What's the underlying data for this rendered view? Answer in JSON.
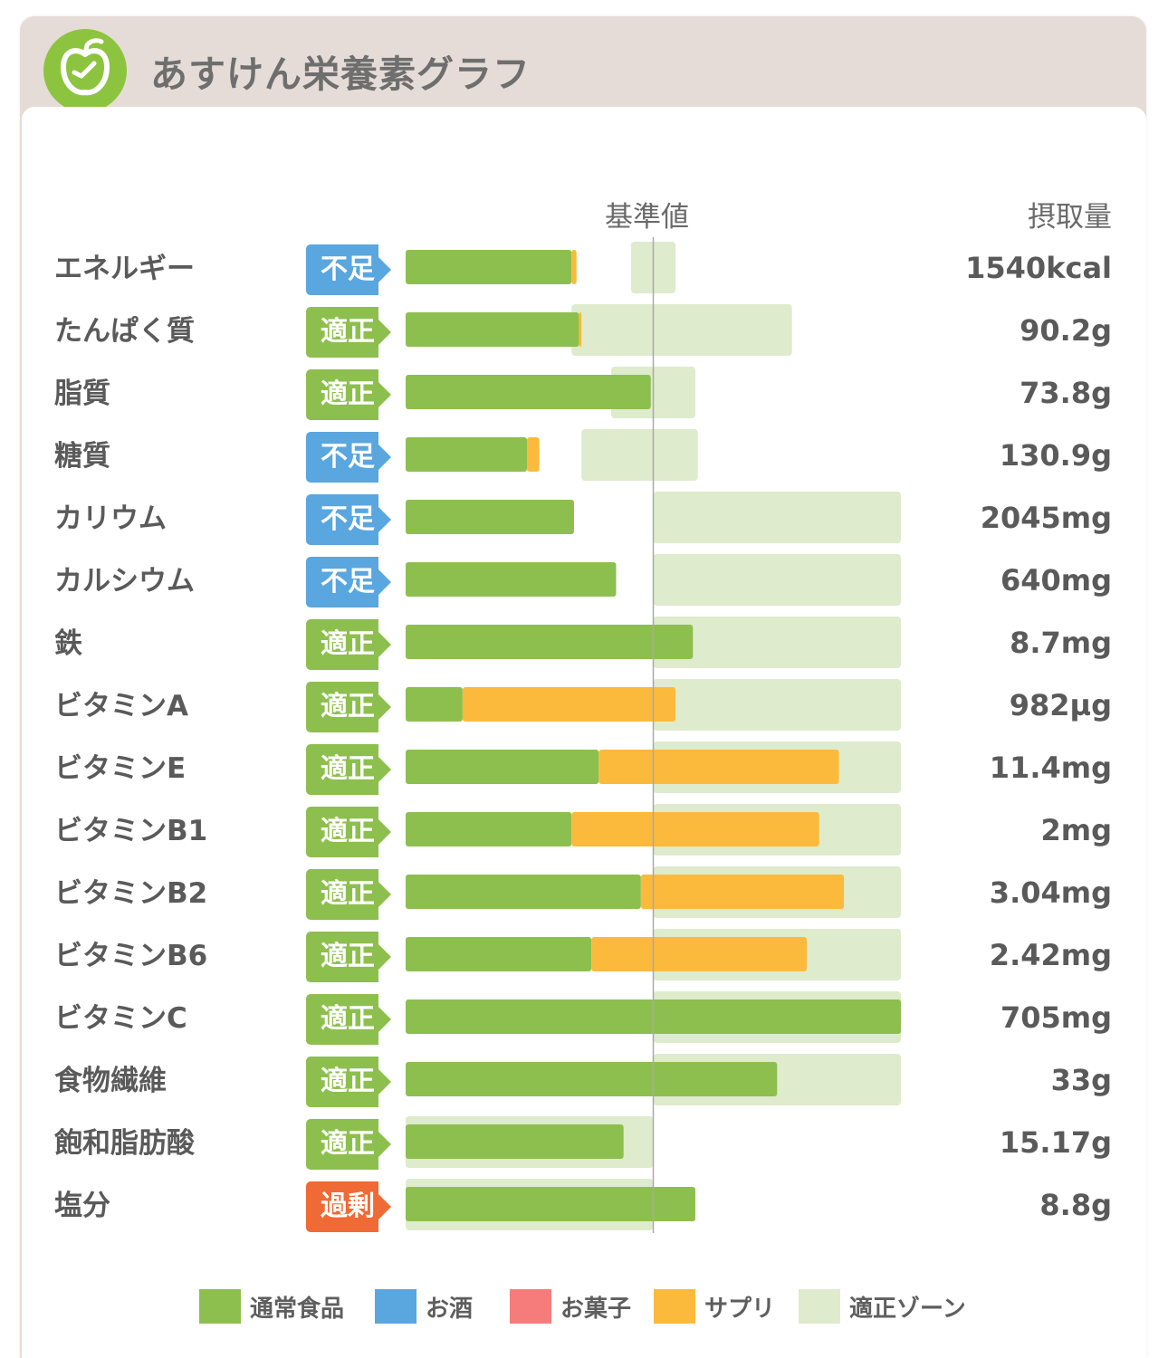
{
  "header": {
    "title": "あすけん栄養素グラフ",
    "logo_icon": "apple-clock-icon"
  },
  "columns": {
    "base_label": "基準値",
    "intake_label": "摂取量"
  },
  "status_colors": {
    "不足": "#5aa6df",
    "適正": "#8dbf4e",
    "過剰": "#f06a35"
  },
  "colors": {
    "food": "#8dbf4e",
    "alcohol": "#5aa6df",
    "snack": "#f67c7c",
    "supplement": "#fbba3c",
    "zone": "#deebcc"
  },
  "chart_data": {
    "type": "bar",
    "stacked": true,
    "orientation": "horizontal",
    "units": "percent of 基準値",
    "reference_line": 100,
    "categories": [
      "エネルギー",
      "たんぱく質",
      "脂質",
      "糖質",
      "カリウム",
      "カルシウム",
      "鉄",
      "ビタミンA",
      "ビタミンE",
      "ビタミンB1",
      "ビタミンB2",
      "ビタミンB6",
      "ビタミンC",
      "食物繊維",
      "飽和脂肪酸",
      "塩分"
    ],
    "statuses": [
      "不足",
      "適正",
      "適正",
      "不足",
      "不足",
      "不足",
      "適正",
      "適正",
      "適正",
      "適正",
      "適正",
      "適正",
      "適正",
      "適正",
      "適正",
      "過剰"
    ],
    "intake_labels": [
      "1540kcal",
      "90.2g",
      "73.8g",
      "130.9g",
      "2045mg",
      "640mg",
      "8.7mg",
      "982µg",
      "11.4mg",
      "2mg",
      "3.04mg",
      "2.42mg",
      "705mg",
      "33g",
      "15.17g",
      "8.8g"
    ],
    "series": [
      {
        "name": "通常食品",
        "color": "#8dbf4e",
        "values": [
          67,
          70,
          99,
          49,
          68,
          85,
          116,
          23,
          78,
          67,
          95,
          75,
          200,
          150,
          88,
          117
        ]
      },
      {
        "name": "お酒",
        "color": "#5aa6df",
        "values": [
          0,
          0,
          0,
          0,
          0,
          0,
          0,
          0,
          0,
          0,
          0,
          0,
          0,
          0,
          0,
          0
        ]
      },
      {
        "name": "お菓子",
        "color": "#f67c7c",
        "values": [
          0,
          0,
          0,
          0,
          0,
          0,
          0,
          0,
          0,
          0,
          0,
          0,
          0,
          0,
          0,
          0
        ]
      },
      {
        "name": "サプリ",
        "color": "#fbba3c",
        "values": [
          2,
          1,
          0,
          5,
          0,
          0,
          0,
          86,
          97,
          100,
          82,
          87,
          0,
          0,
          0,
          0
        ]
      }
    ],
    "optimal_zone": {
      "name": "適正ゾーン",
      "ranges": [
        [
          91,
          109
        ],
        [
          67,
          156
        ],
        [
          83,
          117
        ],
        [
          71,
          118
        ],
        [
          100,
          200
        ],
        [
          100,
          200
        ],
        [
          100,
          200
        ],
        [
          100,
          200
        ],
        [
          100,
          200
        ],
        [
          100,
          200
        ],
        [
          100,
          200
        ],
        [
          100,
          200
        ],
        [
          100,
          200
        ],
        [
          100,
          200
        ],
        [
          0,
          100
        ],
        [
          0,
          100
        ]
      ]
    },
    "xlim": [
      0,
      200
    ],
    "legend_position": "bottom"
  }
}
